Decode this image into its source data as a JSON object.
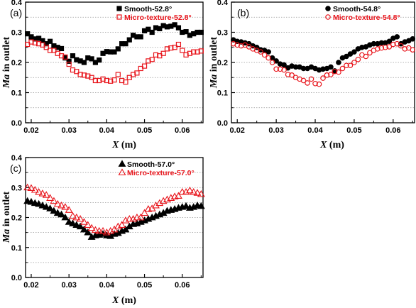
{
  "chart_data": [
    {
      "type": "scatter",
      "panel_label": "(a)",
      "xlabel": "X (m)",
      "ylabel": "Ma in outlet",
      "xlim": [
        0.0185,
        0.0655
      ],
      "ylim": [
        0,
        0.4
      ],
      "xticks": [
        0.02,
        0.03,
        0.04,
        0.05,
        0.06
      ],
      "xtick_labels": [
        "0.02",
        "0.03",
        "0.04",
        "0.05",
        "0.06"
      ],
      "yticks": [
        0.0,
        0.1,
        0.2,
        0.3,
        0.4
      ],
      "ytick_labels": [
        "0.0",
        "0.1",
        "0.2",
        "0.3",
        "0.4"
      ],
      "grid": "dotted horizontal",
      "legend_position": "top-right",
      "series": [
        {
          "name": "Smooth-52.8°",
          "marker": "filled-square",
          "color": "#000000",
          "x": [
            0.019,
            0.02,
            0.021,
            0.022,
            0.023,
            0.024,
            0.025,
            0.026,
            0.027,
            0.028,
            0.029,
            0.03,
            0.031,
            0.032,
            0.033,
            0.034,
            0.035,
            0.036,
            0.037,
            0.038,
            0.039,
            0.04,
            0.041,
            0.042,
            0.043,
            0.044,
            0.045,
            0.046,
            0.047,
            0.048,
            0.049,
            0.05,
            0.051,
            0.052,
            0.053,
            0.054,
            0.055,
            0.056,
            0.057,
            0.058,
            0.059,
            0.06,
            0.061,
            0.062,
            0.063,
            0.064,
            0.065
          ],
          "y": [
            0.295,
            0.285,
            0.278,
            0.28,
            0.272,
            0.262,
            0.27,
            0.255,
            0.25,
            0.246,
            0.215,
            0.204,
            0.222,
            0.209,
            0.205,
            0.2,
            0.215,
            0.212,
            0.2,
            0.208,
            0.23,
            0.236,
            0.235,
            0.235,
            0.245,
            0.262,
            0.262,
            0.275,
            0.29,
            0.285,
            0.285,
            0.305,
            0.31,
            0.3,
            0.315,
            0.312,
            0.322,
            0.318,
            0.32,
            0.325,
            0.315,
            0.3,
            0.302,
            0.29,
            0.295,
            0.3,
            0.3
          ]
        },
        {
          "name": "Micro-texture-52.8°",
          "marker": "open-square",
          "color": "#e8141b",
          "x": [
            0.019,
            0.02,
            0.021,
            0.022,
            0.023,
            0.024,
            0.025,
            0.026,
            0.027,
            0.028,
            0.029,
            0.03,
            0.031,
            0.032,
            0.033,
            0.034,
            0.035,
            0.036,
            0.037,
            0.038,
            0.039,
            0.04,
            0.041,
            0.042,
            0.043,
            0.044,
            0.045,
            0.046,
            0.047,
            0.048,
            0.049,
            0.05,
            0.051,
            0.052,
            0.053,
            0.054,
            0.055,
            0.056,
            0.057,
            0.058,
            0.059,
            0.06,
            0.061,
            0.062,
            0.063,
            0.064,
            0.065
          ],
          "y": [
            0.26,
            0.268,
            0.265,
            0.262,
            0.258,
            0.25,
            0.24,
            0.24,
            0.23,
            0.222,
            0.218,
            0.194,
            0.175,
            0.17,
            0.16,
            0.158,
            0.155,
            0.15,
            0.14,
            0.14,
            0.145,
            0.14,
            0.138,
            0.142,
            0.16,
            0.14,
            0.135,
            0.15,
            0.16,
            0.165,
            0.18,
            0.188,
            0.205,
            0.21,
            0.225,
            0.222,
            0.23,
            0.245,
            0.248,
            0.25,
            0.26,
            0.24,
            0.225,
            0.23,
            0.235,
            0.235,
            0.238
          ]
        }
      ]
    },
    {
      "type": "scatter",
      "panel_label": "(b)",
      "xlabel": "X (m)",
      "ylabel": "Ma in outlet",
      "xlim": [
        0.0185,
        0.0655
      ],
      "ylim": [
        0,
        0.4
      ],
      "xticks": [
        0.02,
        0.03,
        0.04,
        0.05,
        0.06
      ],
      "xtick_labels": [
        "0.02",
        "0.03",
        "0.04",
        "0.05",
        "0.06"
      ],
      "yticks": [
        0.0,
        0.1,
        0.2,
        0.3,
        0.4
      ],
      "ytick_labels": [
        "0.0",
        "0.1",
        "0.2",
        "0.3",
        "0.4"
      ],
      "grid": "dotted horizontal",
      "legend_position": "top-right",
      "series": [
        {
          "name": "Smooth-54.8°",
          "marker": "filled-circle",
          "color": "#000000",
          "x": [
            0.019,
            0.02,
            0.021,
            0.022,
            0.023,
            0.024,
            0.025,
            0.026,
            0.027,
            0.028,
            0.029,
            0.03,
            0.031,
            0.032,
            0.033,
            0.034,
            0.035,
            0.036,
            0.037,
            0.038,
            0.039,
            0.04,
            0.041,
            0.042,
            0.043,
            0.044,
            0.045,
            0.046,
            0.047,
            0.048,
            0.049,
            0.05,
            0.051,
            0.052,
            0.053,
            0.054,
            0.055,
            0.056,
            0.057,
            0.058,
            0.059,
            0.06,
            0.061,
            0.062,
            0.063,
            0.064,
            0.065
          ],
          "y": [
            0.275,
            0.27,
            0.268,
            0.265,
            0.262,
            0.255,
            0.25,
            0.242,
            0.24,
            0.235,
            0.215,
            0.205,
            0.195,
            0.192,
            0.182,
            0.188,
            0.185,
            0.185,
            0.18,
            0.18,
            0.185,
            0.18,
            0.175,
            0.178,
            0.18,
            0.185,
            0.172,
            0.2,
            0.215,
            0.22,
            0.228,
            0.235,
            0.245,
            0.25,
            0.252,
            0.258,
            0.262,
            0.262,
            0.265,
            0.265,
            0.27,
            0.28,
            0.285,
            0.262,
            0.268,
            0.272,
            0.278
          ]
        },
        {
          "name": "Micro-texture-54.8°",
          "marker": "open-circle",
          "color": "#e8141b",
          "x": [
            0.019,
            0.02,
            0.021,
            0.022,
            0.023,
            0.024,
            0.025,
            0.026,
            0.027,
            0.028,
            0.029,
            0.03,
            0.031,
            0.032,
            0.033,
            0.034,
            0.035,
            0.036,
            0.037,
            0.038,
            0.039,
            0.04,
            0.041,
            0.042,
            0.043,
            0.044,
            0.045,
            0.046,
            0.047,
            0.048,
            0.049,
            0.05,
            0.051,
            0.052,
            0.053,
            0.054,
            0.055,
            0.056,
            0.057,
            0.058,
            0.059,
            0.06,
            0.061,
            0.062,
            0.063,
            0.064,
            0.065
          ],
          "y": [
            0.262,
            0.258,
            0.255,
            0.258,
            0.252,
            0.245,
            0.24,
            0.235,
            0.225,
            0.215,
            0.2,
            0.178,
            0.178,
            0.175,
            0.16,
            0.158,
            0.15,
            0.145,
            0.14,
            0.132,
            0.145,
            0.13,
            0.128,
            0.148,
            0.158,
            0.16,
            0.17,
            0.168,
            0.18,
            0.19,
            0.19,
            0.2,
            0.21,
            0.225,
            0.22,
            0.232,
            0.24,
            0.245,
            0.248,
            0.25,
            0.252,
            0.26,
            0.262,
            0.255,
            0.245,
            0.248,
            0.242
          ]
        }
      ]
    },
    {
      "type": "scatter",
      "panel_label": "(c)",
      "xlabel": "X (m)",
      "ylabel": "Ma in outlet",
      "xlim": [
        0.0185,
        0.0655
      ],
      "ylim": [
        0,
        0.4
      ],
      "xticks": [
        0.02,
        0.03,
        0.04,
        0.05,
        0.06
      ],
      "xtick_labels": [
        "0.02",
        "0.03",
        "0.04",
        "0.05",
        "0.06"
      ],
      "yticks": [
        0.0,
        0.1,
        0.2,
        0.3,
        0.4
      ],
      "ytick_labels": [
        "0.0",
        "0.1",
        "0.2",
        "0.3",
        "0.4"
      ],
      "grid": "dotted horizontal",
      "legend_position": "top-right",
      "series": [
        {
          "name": "Smooth-57.0°",
          "marker": "filled-triangle",
          "color": "#000000",
          "x": [
            0.019,
            0.02,
            0.021,
            0.022,
            0.023,
            0.024,
            0.025,
            0.026,
            0.027,
            0.028,
            0.029,
            0.03,
            0.031,
            0.032,
            0.033,
            0.034,
            0.035,
            0.036,
            0.037,
            0.038,
            0.039,
            0.04,
            0.041,
            0.042,
            0.043,
            0.044,
            0.045,
            0.046,
            0.047,
            0.048,
            0.049,
            0.05,
            0.051,
            0.052,
            0.053,
            0.054,
            0.055,
            0.056,
            0.057,
            0.058,
            0.059,
            0.06,
            0.061,
            0.062,
            0.063,
            0.064,
            0.065
          ],
          "y": [
            0.255,
            0.252,
            0.248,
            0.245,
            0.24,
            0.235,
            0.23,
            0.222,
            0.215,
            0.21,
            0.2,
            0.185,
            0.18,
            0.175,
            0.17,
            0.16,
            0.15,
            0.135,
            0.14,
            0.142,
            0.145,
            0.14,
            0.138,
            0.145,
            0.148,
            0.155,
            0.16,
            0.17,
            0.178,
            0.18,
            0.185,
            0.19,
            0.195,
            0.2,
            0.205,
            0.21,
            0.215,
            0.222,
            0.225,
            0.228,
            0.232,
            0.235,
            0.238,
            0.232,
            0.235,
            0.24,
            0.238
          ]
        },
        {
          "name": "Micro-texture-57.0°",
          "marker": "open-triangle",
          "color": "#e8141b",
          "x": [
            0.019,
            0.02,
            0.021,
            0.022,
            0.023,
            0.024,
            0.025,
            0.026,
            0.027,
            0.028,
            0.029,
            0.03,
            0.031,
            0.032,
            0.033,
            0.034,
            0.035,
            0.036,
            0.037,
            0.038,
            0.039,
            0.04,
            0.041,
            0.042,
            0.043,
            0.044,
            0.045,
            0.046,
            0.047,
            0.048,
            0.049,
            0.05,
            0.051,
            0.052,
            0.053,
            0.054,
            0.055,
            0.056,
            0.057,
            0.058,
            0.059,
            0.06,
            0.061,
            0.062,
            0.063,
            0.064,
            0.065
          ],
          "y": [
            0.3,
            0.298,
            0.292,
            0.285,
            0.28,
            0.275,
            0.265,
            0.255,
            0.245,
            0.24,
            0.235,
            0.225,
            0.205,
            0.2,
            0.195,
            0.185,
            0.175,
            0.165,
            0.158,
            0.155,
            0.155,
            0.15,
            0.155,
            0.16,
            0.17,
            0.175,
            0.19,
            0.195,
            0.195,
            0.2,
            0.2,
            0.215,
            0.228,
            0.23,
            0.24,
            0.248,
            0.255,
            0.26,
            0.265,
            0.27,
            0.272,
            0.285,
            0.285,
            0.29,
            0.285,
            0.282,
            0.278
          ]
        }
      ]
    }
  ]
}
